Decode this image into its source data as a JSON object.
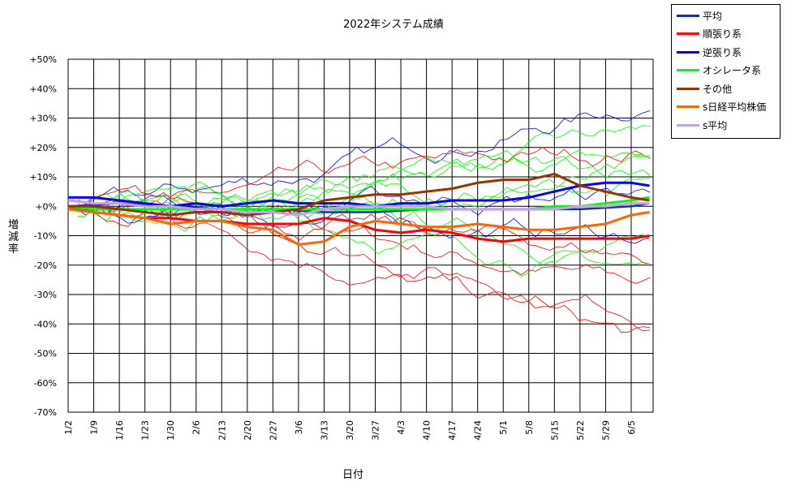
{
  "chart_data": {
    "type": "line",
    "title": "2022年システム成績",
    "xlabel": "日付",
    "ylabel": "増減率",
    "ylim": [
      -70,
      50
    ],
    "y_ticks": [
      50,
      40,
      30,
      20,
      10,
      0,
      -10,
      -20,
      -30,
      -40,
      -50,
      -60,
      -70
    ],
    "y_tick_labels": [
      "+50%",
      "+40%",
      "+30%",
      "+20%",
      "+10%",
      "+0%",
      "-10%",
      "-20%",
      "-30%",
      "-40%",
      "-50%",
      "-60%",
      "-70%"
    ],
    "x_tick_labels": [
      "1/2",
      "1/9",
      "1/16",
      "1/23",
      "1/30",
      "2/6",
      "2/13",
      "2/20",
      "2/27",
      "3/6",
      "3/13",
      "3/20",
      "3/27",
      "4/3",
      "4/10",
      "4/17",
      "4/24",
      "5/1",
      "5/8",
      "5/15",
      "5/22",
      "5/29",
      "6/5"
    ],
    "grid": true,
    "legend_position": "top-right",
    "series": [
      {
        "name": "平均",
        "color": "#1f2f9e",
        "width": 2.5,
        "points": [
          [
            "1/2",
            0
          ],
          [
            "1/16",
            1
          ],
          [
            "1/30",
            0
          ],
          [
            "2/13",
            -1
          ],
          [
            "2/27",
            -1
          ],
          [
            "3/13",
            -2
          ],
          [
            "3/27",
            -2
          ],
          [
            "4/10",
            -1
          ],
          [
            "4/24",
            -1
          ],
          [
            "5/8",
            -1
          ],
          [
            "5/22",
            -1
          ],
          [
            "6/5",
            0
          ],
          [
            "6/10",
            1
          ]
        ]
      },
      {
        "name": "順張り系",
        "color": "#ff0000",
        "width": 3,
        "points": [
          [
            "1/2",
            0
          ],
          [
            "1/9",
            -2
          ],
          [
            "1/16",
            -3
          ],
          [
            "1/23",
            -4
          ],
          [
            "1/30",
            -4
          ],
          [
            "2/6",
            -5
          ],
          [
            "2/13",
            -5
          ],
          [
            "2/20",
            -6
          ],
          [
            "2/27",
            -6
          ],
          [
            "3/6",
            -6
          ],
          [
            "3/13",
            -4
          ],
          [
            "3/20",
            -5
          ],
          [
            "3/27",
            -8
          ],
          [
            "4/3",
            -9
          ],
          [
            "4/10",
            -8
          ],
          [
            "4/17",
            -9
          ],
          [
            "4/24",
            -11
          ],
          [
            "5/1",
            -12
          ],
          [
            "5/8",
            -11
          ],
          [
            "5/15",
            -11
          ],
          [
            "5/22",
            -11
          ],
          [
            "5/29",
            -11
          ],
          [
            "6/5",
            -11
          ],
          [
            "6/10",
            -10
          ]
        ]
      },
      {
        "name": "逆張り系",
        "color": "#0000ff",
        "width": 3,
        "points": [
          [
            "1/2",
            3
          ],
          [
            "1/9",
            3
          ],
          [
            "1/16",
            2
          ],
          [
            "1/23",
            1
          ],
          [
            "1/30",
            0
          ],
          [
            "2/6",
            1
          ],
          [
            "2/13",
            0
          ],
          [
            "2/20",
            1
          ],
          [
            "2/27",
            2
          ],
          [
            "3/6",
            1
          ],
          [
            "3/13",
            1
          ],
          [
            "3/20",
            1
          ],
          [
            "3/27",
            0
          ],
          [
            "4/3",
            1
          ],
          [
            "4/10",
            1
          ],
          [
            "4/17",
            2
          ],
          [
            "4/24",
            2
          ],
          [
            "5/1",
            2
          ],
          [
            "5/8",
            3
          ],
          [
            "5/15",
            5
          ],
          [
            "5/22",
            7
          ],
          [
            "5/29",
            8
          ],
          [
            "6/5",
            8
          ],
          [
            "6/10",
            7
          ]
        ]
      },
      {
        "name": "オシレータ系",
        "color": "#00ff00",
        "width": 3,
        "points": [
          [
            "1/2",
            0
          ],
          [
            "1/9",
            -1
          ],
          [
            "1/16",
            -1
          ],
          [
            "1/23",
            -1
          ],
          [
            "1/30",
            -1
          ],
          [
            "2/6",
            -1
          ],
          [
            "2/13",
            -1
          ],
          [
            "2/20",
            -1
          ],
          [
            "2/27",
            -1
          ],
          [
            "3/6",
            -1
          ],
          [
            "3/13",
            -1
          ],
          [
            "3/20",
            -1
          ],
          [
            "3/27",
            -1
          ],
          [
            "4/3",
            -1
          ],
          [
            "4/10",
            -1
          ],
          [
            "4/17",
            -1
          ],
          [
            "4/24",
            -1
          ],
          [
            "5/1",
            -1
          ],
          [
            "5/8",
            -1
          ],
          [
            "5/15",
            0
          ],
          [
            "5/22",
            0
          ],
          [
            "5/29",
            1
          ],
          [
            "6/5",
            2
          ],
          [
            "6/10",
            3
          ]
        ]
      },
      {
        "name": "その他",
        "color": "#993300",
        "width": 3,
        "points": [
          [
            "1/2",
            0
          ],
          [
            "1/9",
            0
          ],
          [
            "1/16",
            -1
          ],
          [
            "1/23",
            -2
          ],
          [
            "1/30",
            -3
          ],
          [
            "2/6",
            -2
          ],
          [
            "2/13",
            -2
          ],
          [
            "2/20",
            -3
          ],
          [
            "2/27",
            -2
          ],
          [
            "3/6",
            -1
          ],
          [
            "3/13",
            2
          ],
          [
            "3/20",
            3
          ],
          [
            "3/27",
            4
          ],
          [
            "4/3",
            4
          ],
          [
            "4/10",
            5
          ],
          [
            "4/17",
            6
          ],
          [
            "4/24",
            8
          ],
          [
            "5/1",
            9
          ],
          [
            "5/8",
            9
          ],
          [
            "5/15",
            11
          ],
          [
            "5/22",
            7
          ],
          [
            "5/29",
            5
          ],
          [
            "6/5",
            3
          ],
          [
            "6/10",
            2
          ]
        ]
      },
      {
        "name": "s日経平均株価",
        "color": "#ff6600",
        "width": 3,
        "points": [
          [
            "1/2",
            -1
          ],
          [
            "1/9",
            -2
          ],
          [
            "1/16",
            -3
          ],
          [
            "1/23",
            -4
          ],
          [
            "1/30",
            -6
          ],
          [
            "2/6",
            -5
          ],
          [
            "2/13",
            -5
          ],
          [
            "2/20",
            -7
          ],
          [
            "2/27",
            -8
          ],
          [
            "3/6",
            -13
          ],
          [
            "3/13",
            -12
          ],
          [
            "3/20",
            -7
          ],
          [
            "3/27",
            -5
          ],
          [
            "4/3",
            -6
          ],
          [
            "4/10",
            -7
          ],
          [
            "4/17",
            -7
          ],
          [
            "4/24",
            -6
          ],
          [
            "5/1",
            -7
          ],
          [
            "5/8",
            -8
          ],
          [
            "5/15",
            -8
          ],
          [
            "5/22",
            -7
          ],
          [
            "5/29",
            -6
          ],
          [
            "6/5",
            -3
          ],
          [
            "6/10",
            -2
          ]
        ]
      },
      {
        "name": "s平均",
        "color": "#cc99ff",
        "width": 3,
        "points": [
          [
            "1/2",
            2
          ],
          [
            "1/9",
            1
          ],
          [
            "1/16",
            1
          ],
          [
            "1/23",
            0
          ],
          [
            "1/30",
            0
          ],
          [
            "2/6",
            -1
          ],
          [
            "2/13",
            -1
          ],
          [
            "2/20",
            -2
          ],
          [
            "2/27",
            -2
          ],
          [
            "3/6",
            -3
          ],
          [
            "3/13",
            -1
          ],
          [
            "3/20",
            0
          ],
          [
            "3/27",
            0
          ],
          [
            "4/3",
            0
          ],
          [
            "4/10",
            0
          ],
          [
            "4/17",
            -1
          ],
          [
            "4/24",
            -1
          ],
          [
            "5/1",
            -1
          ],
          [
            "5/8",
            -1
          ],
          [
            "5/15",
            -1
          ],
          [
            "5/22",
            0
          ],
          [
            "5/29",
            0
          ],
          [
            "6/5",
            1
          ],
          [
            "6/10",
            1
          ]
        ]
      }
    ]
  }
}
